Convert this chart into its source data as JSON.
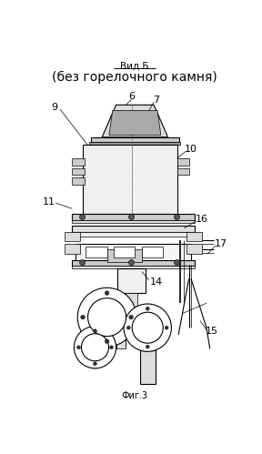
{
  "title_top": "Вид Б",
  "title_main": "(без горелочного камня)",
  "fig_label": "Фиг.3",
  "bg_color": "#ffffff",
  "line_color": "#000000",
  "gray_light": "#e8e8e8",
  "gray_mid": "#bbbbbb",
  "gray_dark": "#888888"
}
